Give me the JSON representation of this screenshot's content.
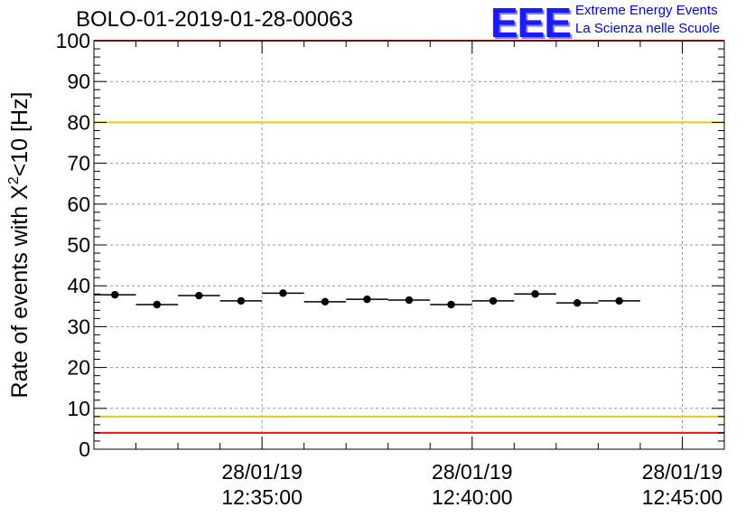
{
  "header": {
    "title": "BOLO-01-2019-01-28-00063",
    "logo_text": "EEE",
    "org_line1": "Extreme Energy Events",
    "org_line2": "La Scienza nelle Scuole"
  },
  "colors": {
    "limit_red": "#e8191b",
    "limit_yellow": "#f2c80f",
    "logo_blue": "#1a1aff"
  },
  "chart_data": {
    "type": "scatter",
    "title": "BOLO-01-2019-01-28-00063",
    "ylabel": "Rate of events with X²<10 [Hz]",
    "ylabel_parts": {
      "pre": "Rate of events with X",
      "sup": "2",
      "post": "<10 [Hz]"
    },
    "xlabel": "",
    "ylim": [
      0,
      100
    ],
    "xlim": [
      "12:31:00",
      "12:46:00"
    ],
    "yticks": [
      0,
      10,
      20,
      30,
      40,
      50,
      60,
      70,
      80,
      90,
      100
    ],
    "xticks": [
      {
        "time": "12:35:00",
        "date": "28/01/19",
        "label": "12:35:00"
      },
      {
        "time": "12:40:00",
        "date": "28/01/19",
        "label": "12:40:00"
      },
      {
        "time": "12:45:00",
        "date": "28/01/19",
        "label": "12:45:00"
      }
    ],
    "grid": true,
    "reference_lines": [
      {
        "y": 100,
        "color": "red"
      },
      {
        "y": 80,
        "color": "yellow"
      },
      {
        "y": 8,
        "color": "yellow"
      },
      {
        "y": 4,
        "color": "red"
      }
    ],
    "points": [
      {
        "x_start": "12:31:00",
        "x_end": "12:32:00",
        "y": 37.8
      },
      {
        "x_start": "12:32:00",
        "x_end": "12:33:00",
        "y": 35.4
      },
      {
        "x_start": "12:33:00",
        "x_end": "12:34:00",
        "y": 37.6
      },
      {
        "x_start": "12:34:00",
        "x_end": "12:35:00",
        "y": 36.3
      },
      {
        "x_start": "12:35:00",
        "x_end": "12:36:00",
        "y": 38.2
      },
      {
        "x_start": "12:36:00",
        "x_end": "12:37:00",
        "y": 36.1
      },
      {
        "x_start": "12:37:00",
        "x_end": "12:38:00",
        "y": 36.7
      },
      {
        "x_start": "12:38:00",
        "x_end": "12:39:00",
        "y": 36.5
      },
      {
        "x_start": "12:39:00",
        "x_end": "12:40:00",
        "y": 35.4
      },
      {
        "x_start": "12:40:00",
        "x_end": "12:41:00",
        "y": 36.3
      },
      {
        "x_start": "12:41:00",
        "x_end": "12:42:00",
        "y": 38.0
      },
      {
        "x_start": "12:42:00",
        "x_end": "12:43:00",
        "y": 35.8
      },
      {
        "x_start": "12:43:00",
        "x_end": "12:44:00",
        "y": 36.3
      }
    ]
  }
}
